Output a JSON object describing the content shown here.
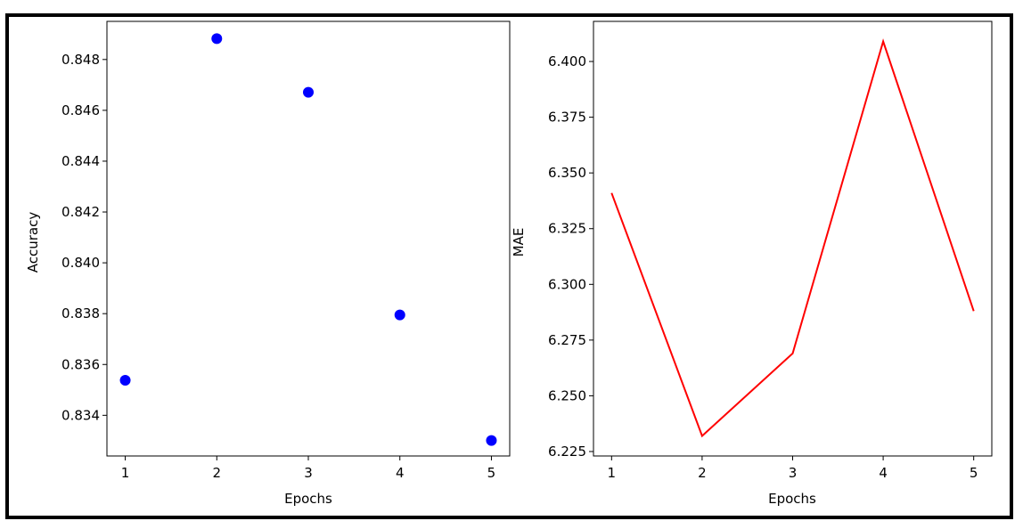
{
  "chart_data": [
    {
      "type": "scatter",
      "xlabel": "Epochs",
      "ylabel": "Accuracy",
      "x": [
        1,
        2,
        3,
        4,
        5
      ],
      "y": [
        0.83538,
        0.84882,
        0.84671,
        0.83795,
        0.83301
      ],
      "xticks": [
        1,
        2,
        3,
        4,
        5
      ],
      "xtick_labels": [
        "1",
        "2",
        "3",
        "4",
        "5"
      ],
      "yticks": [
        0.834,
        0.836,
        0.838,
        0.84,
        0.842,
        0.844,
        0.846,
        0.848
      ],
      "ytick_labels": [
        "0.834",
        "0.836",
        "0.838",
        "0.840",
        "0.842",
        "0.844",
        "0.846",
        "0.848"
      ],
      "xlim": [
        0.8,
        5.2
      ],
      "ylim": [
        0.8324,
        0.8495
      ],
      "grid": false,
      "color": "#0000ff"
    },
    {
      "type": "line",
      "xlabel": "Epochs",
      "ylabel": "MAE",
      "x": [
        1,
        2,
        3,
        4,
        5
      ],
      "y": [
        6.341,
        6.232,
        6.269,
        6.409,
        6.288
      ],
      "xticks": [
        1,
        2,
        3,
        4,
        5
      ],
      "xtick_labels": [
        "1",
        "2",
        "3",
        "4",
        "5"
      ],
      "yticks": [
        6.225,
        6.25,
        6.275,
        6.3,
        6.325,
        6.35,
        6.375,
        6.4
      ],
      "ytick_labels": [
        "6.225",
        "6.250",
        "6.275",
        "6.300",
        "6.325",
        "6.350",
        "6.375",
        "6.400"
      ],
      "xlim": [
        0.8,
        5.2
      ],
      "ylim": [
        6.223,
        6.418
      ],
      "grid": false,
      "color": "#ff0000"
    }
  ]
}
